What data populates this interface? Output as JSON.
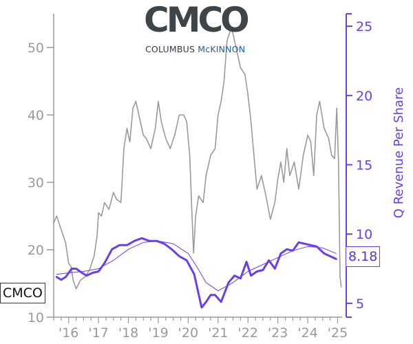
{
  "ticker": "CMCO",
  "logo": {
    "mark": "CMCO",
    "company_prefix": "COLUMBUS ",
    "company_suffix": "McKINNON",
    "mark_color": "#3d4549",
    "suffix_color": "#1f5f9f"
  },
  "chart_data": {
    "type": "line",
    "title": "",
    "xlabel": "",
    "x_tick_labels": [
      "'16",
      "'17",
      "'18",
      "'19",
      "'20",
      "'21",
      "'22",
      "'23",
      "'24",
      "'25"
    ],
    "x_tick_years": [
      2016,
      2017,
      2018,
      2019,
      2020,
      2021,
      2022,
      2023,
      2024,
      2025
    ],
    "xlim": [
      2015.5,
      2025.15
    ],
    "left_axis": {
      "label": "",
      "ticks": [
        10,
        20,
        30,
        40,
        50
      ],
      "ylim": [
        10,
        55
      ],
      "color": "#999999"
    },
    "right_axis": {
      "label": "Q Revenue Per Share",
      "ticks": [
        5,
        10,
        15,
        20,
        25
      ],
      "ylim": [
        4,
        25.9
      ],
      "color": "#6a3df2"
    },
    "last_value_label": "8.18",
    "series": [
      {
        "role": "price",
        "axis": "left",
        "color": "#999999",
        "x": [
          2015.5,
          2015.6,
          2015.75,
          2015.9,
          2016.0,
          2016.08,
          2016.15,
          2016.25,
          2016.4,
          2016.55,
          2016.7,
          2016.85,
          2016.95,
          2017.0,
          2017.1,
          2017.2,
          2017.35,
          2017.5,
          2017.6,
          2017.75,
          2017.85,
          2017.95,
          2018.05,
          2018.15,
          2018.25,
          2018.4,
          2018.5,
          2018.6,
          2018.75,
          2018.9,
          2019.0,
          2019.1,
          2019.25,
          2019.4,
          2019.55,
          2019.7,
          2019.85,
          2019.95,
          2020.05,
          2020.12,
          2020.18,
          2020.25,
          2020.35,
          2020.5,
          2020.6,
          2020.75,
          2020.9,
          2021.0,
          2021.1,
          2021.2,
          2021.3,
          2021.45,
          2021.6,
          2021.75,
          2021.9,
          2022.0,
          2022.1,
          2022.2,
          2022.3,
          2022.45,
          2022.6,
          2022.75,
          2022.9,
          2023.0,
          2023.1,
          2023.2,
          2023.3,
          2023.4,
          2023.55,
          2023.7,
          2023.85,
          2024.0,
          2024.1,
          2024.2,
          2024.3,
          2024.4,
          2024.55,
          2024.7,
          2024.8,
          2024.9,
          2024.97,
          2025.03,
          2025.08,
          2025.12
        ],
        "y": [
          24,
          25,
          23,
          21,
          18,
          17.5,
          15.5,
          14.2,
          15.5,
          16,
          17,
          19,
          22,
          25.5,
          25,
          27,
          26,
          28.5,
          27.5,
          27,
          35,
          38,
          36,
          41,
          42,
          39,
          37,
          36.5,
          35,
          38,
          42,
          39,
          36.5,
          35,
          37,
          40,
          40,
          39,
          34,
          26,
          19.5,
          25,
          28,
          27,
          31,
          34,
          35,
          40,
          42,
          45,
          51,
          53,
          50,
          47,
          46,
          43,
          39,
          34,
          29,
          31,
          28,
          24.5,
          27,
          30.5,
          33,
          30,
          35,
          31,
          33,
          29,
          34,
          37,
          36,
          31,
          40,
          42,
          38,
          36.5,
          34,
          33.5,
          41,
          33,
          16,
          14.5
        ]
      },
      {
        "role": "revenue_per_share",
        "axis": "right",
        "color": "#6a3df2",
        "x": [
          2015.6,
          2015.75,
          2015.9,
          2016.1,
          2016.25,
          2016.45,
          2016.6,
          2016.8,
          2017.0,
          2017.2,
          2017.45,
          2017.7,
          2017.95,
          2018.2,
          2018.45,
          2018.7,
          2018.95,
          2019.2,
          2019.45,
          2019.7,
          2019.95,
          2020.2,
          2020.45,
          2020.6,
          2020.75,
          2020.9,
          2021.1,
          2021.35,
          2021.55,
          2021.75,
          2021.95,
          2022.1,
          2022.3,
          2022.5,
          2022.7,
          2022.9,
          2023.1,
          2023.3,
          2023.5,
          2023.7,
          2023.9,
          2024.1,
          2024.3,
          2024.55,
          2024.75,
          2024.95
        ],
        "y": [
          6.9,
          6.7,
          6.9,
          7.5,
          7.5,
          7.2,
          7.0,
          7.2,
          7.3,
          7.9,
          8.9,
          9.2,
          9.2,
          9.5,
          9.7,
          9.5,
          9.5,
          9.3,
          8.9,
          8.4,
          8.1,
          7.1,
          4.7,
          5.1,
          5.6,
          5.6,
          5.1,
          6.5,
          7.0,
          6.8,
          8.0,
          7.0,
          7.3,
          7.4,
          8.1,
          7.5,
          8.6,
          8.9,
          8.8,
          9.4,
          9.3,
          9.2,
          9.1,
          8.6,
          8.4,
          8.2
        ]
      },
      {
        "role": "revenue_per_share_trend",
        "axis": "right",
        "color": "#6a3df2",
        "x": [
          2015.6,
          2016.0,
          2016.5,
          2017.0,
          2017.5,
          2018.0,
          2018.5,
          2019.0,
          2019.5,
          2020.0,
          2020.3,
          2020.6,
          2021.0,
          2021.5,
          2022.0,
          2022.5,
          2023.0,
          2023.5,
          2024.0,
          2024.5,
          2024.95
        ],
        "y": [
          7.1,
          7.2,
          7.3,
          7.5,
          8.1,
          8.9,
          9.4,
          9.5,
          9.3,
          8.6,
          7.6,
          6.5,
          5.9,
          6.5,
          7.3,
          7.8,
          8.3,
          8.8,
          9.1,
          9.0,
          8.6
        ]
      }
    ]
  }
}
